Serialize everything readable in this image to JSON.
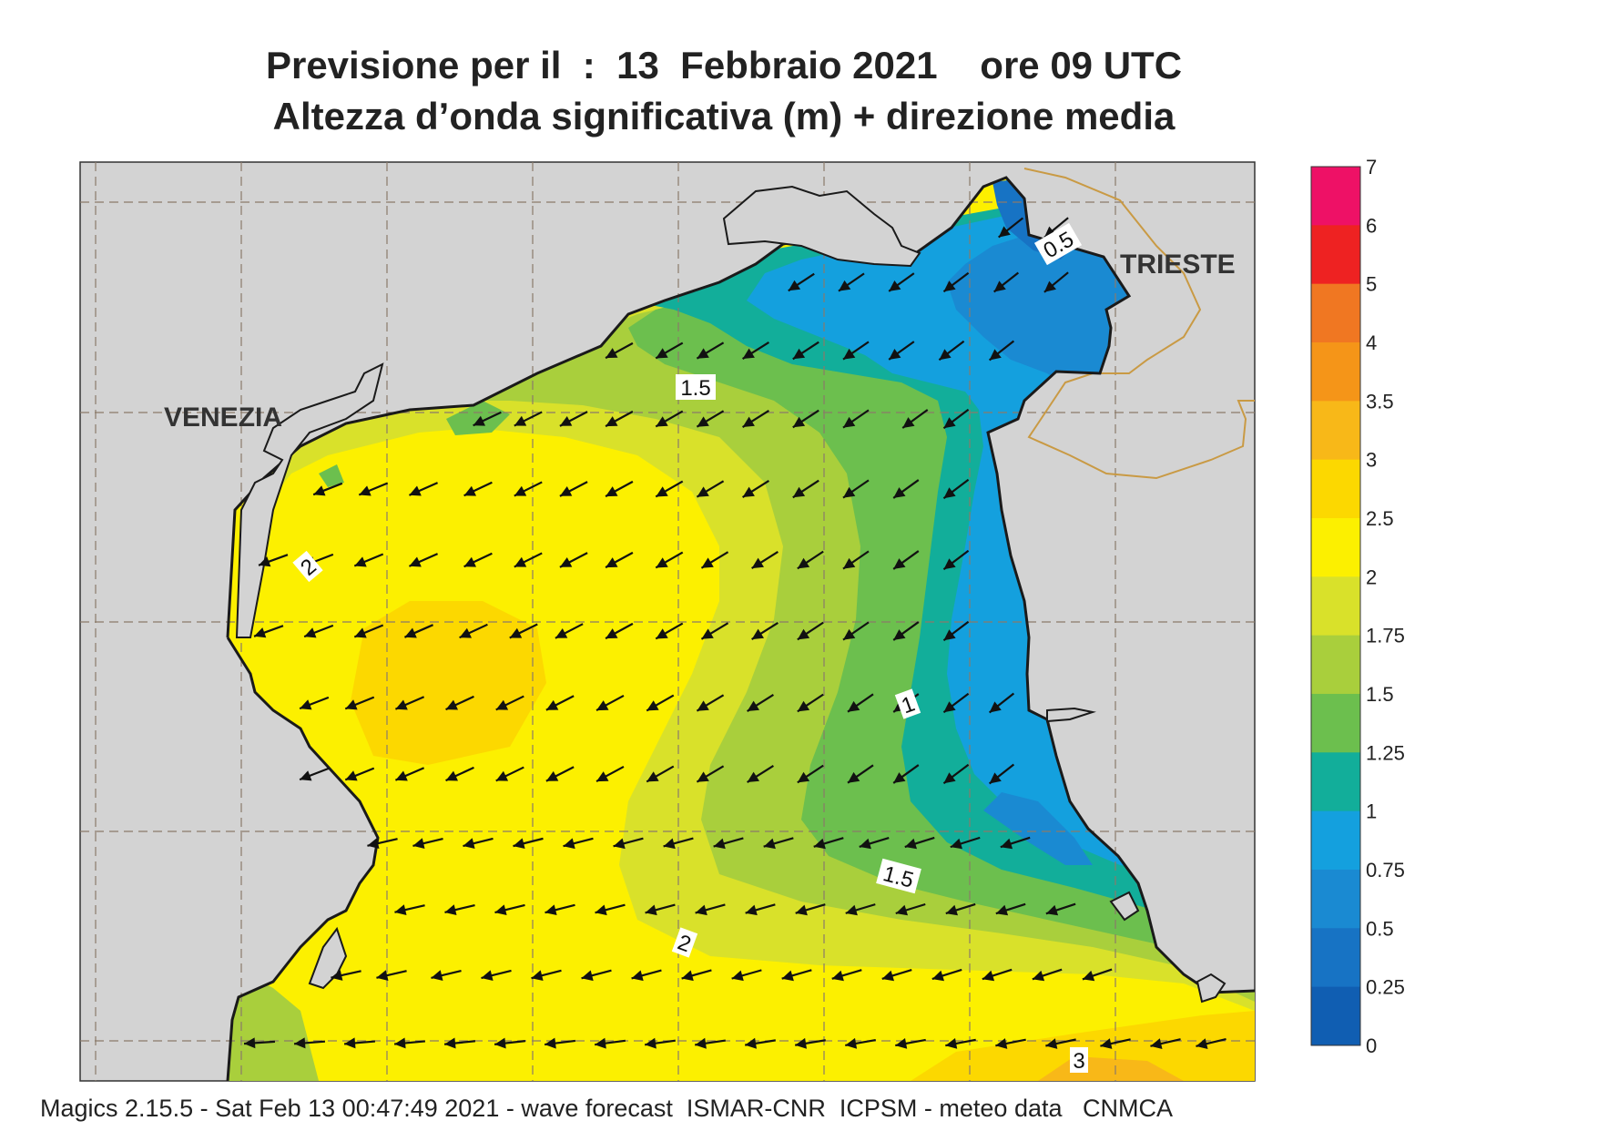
{
  "header": {
    "title_line1": "Previsione per il  :  13  Febbraio 2021    ore 09 UTC",
    "title_line2": "Altezza d’onda significativa (m) + direzione media"
  },
  "map": {
    "cities": {
      "venezia": "VENEZIA",
      "trieste": "TRIESTE"
    },
    "contour_labels": [
      "0.5",
      "1.5",
      "2",
      "1",
      "1.5",
      "2",
      "3"
    ],
    "land_color": "#d3d3d3",
    "coast_color": "#1a1a1a"
  },
  "colorbar": {
    "labels": [
      "7",
      "6",
      "5",
      "4",
      "3.5",
      "3",
      "2.5",
      "2",
      "1.75",
      "1.5",
      "1.25",
      "1",
      "0.75",
      "0.5",
      "0.25",
      "0"
    ],
    "colors": [
      "#ee1166",
      "#ee2222",
      "#f07722",
      "#f59518",
      "#f8b818",
      "#fcd800",
      "#fcf000",
      "#d9e12a",
      "#a9cf3c",
      "#6cbf4e",
      "#12ae9a",
      "#14a0de",
      "#1a8ad2",
      "#1773c4",
      "#105eb2"
    ]
  },
  "footer": {
    "text": "Magics 2.15.5 - Sat Feb 13 00:47:49 2021 - wave forecast  ISMAR-CNR  ICPSM - meteo data   CNMCA"
  }
}
